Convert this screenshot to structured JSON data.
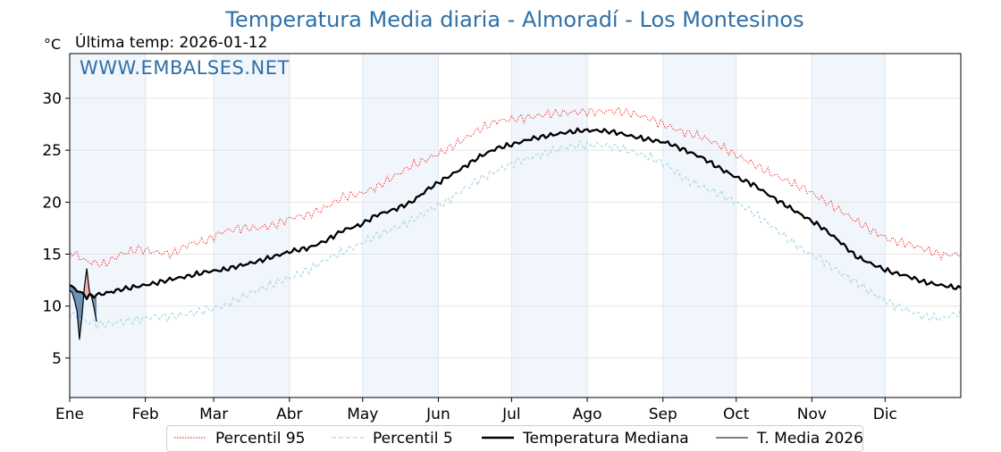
{
  "title": "Temperatura Media diaria - Almoradí - Los Montesinos",
  "unit_label": "°C",
  "subtitle": "Última temp: 2026-01-12",
  "watermark": "WWW.EMBALSES.NET",
  "colors": {
    "p95": "#ff0000",
    "p5": "#add8e6",
    "median": "#000000",
    "current": "#000000",
    "band_shade": "#f0f6fc",
    "fill_above": "#f4a3a3",
    "fill_below": "#4f7ea8",
    "title": "#2f6fa7"
  },
  "legend": [
    {
      "key": "p95",
      "label": "Percentil 95",
      "style": "dotted"
    },
    {
      "key": "p5",
      "label": "Percentil 5",
      "style": "dashed"
    },
    {
      "key": "median",
      "label": "Temperatura Mediana",
      "style": "thick"
    },
    {
      "key": "current",
      "label": "T. Media 2026",
      "style": "thin"
    }
  ],
  "chart_data": {
    "type": "line",
    "title": "Temperatura Media diaria - Almoradí - Los Montesinos",
    "ylabel": "°C",
    "xlabel": "",
    "ylim": [
      1.2,
      34.3
    ],
    "yticks": [
      5,
      10,
      15,
      20,
      25,
      30
    ],
    "x_range_days": [
      1,
      366
    ],
    "months": [
      {
        "label": "Ene",
        "start_day": 1
      },
      {
        "label": "Feb",
        "start_day": 32
      },
      {
        "label": "Mar",
        "start_day": 60
      },
      {
        "label": "Abr",
        "start_day": 91
      },
      {
        "label": "May",
        "start_day": 121
      },
      {
        "label": "Jun",
        "start_day": 152
      },
      {
        "label": "Jul",
        "start_day": 182
      },
      {
        "label": "Ago",
        "start_day": 213
      },
      {
        "label": "Sep",
        "start_day": 244
      },
      {
        "label": "Oct",
        "start_day": 274
      },
      {
        "label": "Nov",
        "start_day": 305
      },
      {
        "label": "Dic",
        "start_day": 335
      }
    ],
    "shaded_month_indices": [
      0,
      2,
      4,
      6,
      8,
      10
    ],
    "grid": true,
    "legend_position": "bottom",
    "series": [
      {
        "key": "p95",
        "name": "Percentil 95",
        "x": [
          1,
          8,
          15,
          22,
          29,
          36,
          43,
          50,
          57,
          64,
          71,
          78,
          85,
          92,
          99,
          106,
          113,
          120,
          127,
          134,
          141,
          148,
          155,
          162,
          169,
          176,
          183,
          190,
          197,
          204,
          211,
          218,
          225,
          232,
          239,
          246,
          253,
          260,
          267,
          274,
          281,
          288,
          295,
          302,
          309,
          316,
          323,
          330,
          337,
          344,
          351,
          358,
          366
        ],
        "values": [
          15.3,
          14.3,
          14.0,
          15.0,
          15.5,
          15.2,
          15.0,
          16.0,
          16.3,
          17.2,
          17.5,
          17.5,
          17.8,
          18.5,
          18.8,
          19.5,
          20.5,
          20.8,
          21.5,
          22.5,
          23.5,
          24.2,
          25.0,
          26.0,
          27.0,
          27.8,
          28.0,
          28.2,
          28.5,
          28.6,
          28.7,
          28.7,
          28.8,
          28.5,
          28.0,
          27.3,
          26.7,
          26.3,
          25.5,
          24.5,
          23.7,
          22.8,
          22.0,
          21.3,
          20.3,
          19.3,
          18.2,
          17.2,
          16.4,
          16.0,
          15.5,
          14.9,
          15.0
        ]
      },
      {
        "key": "p5",
        "name": "Percentil 5",
        "x": [
          1,
          8,
          15,
          22,
          29,
          36,
          43,
          50,
          57,
          64,
          71,
          78,
          85,
          92,
          99,
          106,
          113,
          120,
          127,
          134,
          141,
          148,
          155,
          162,
          169,
          176,
          183,
          190,
          197,
          204,
          211,
          218,
          225,
          232,
          239,
          246,
          253,
          260,
          267,
          274,
          281,
          288,
          295,
          302,
          309,
          316,
          323,
          330,
          337,
          344,
          351,
          358,
          366
        ],
        "values": [
          9.3,
          8.5,
          8.2,
          8.5,
          8.7,
          9.0,
          9.0,
          9.3,
          9.6,
          10.0,
          10.8,
          11.5,
          12.2,
          12.8,
          13.5,
          14.5,
          15.2,
          16.0,
          16.8,
          17.5,
          18.2,
          19.2,
          20.0,
          21.2,
          22.2,
          23.0,
          23.8,
          24.3,
          24.8,
          25.3,
          25.5,
          25.5,
          25.3,
          24.8,
          24.3,
          23.5,
          22.2,
          21.5,
          20.8,
          20.0,
          19.0,
          17.8,
          16.5,
          15.3,
          14.5,
          13.3,
          12.3,
          11.2,
          10.3,
          9.6,
          9.0,
          8.8,
          9.4
        ]
      },
      {
        "key": "median",
        "name": "Temperatura Mediana",
        "x": [
          1,
          8,
          15,
          22,
          29,
          36,
          43,
          50,
          57,
          64,
          71,
          78,
          85,
          92,
          99,
          106,
          113,
          120,
          127,
          134,
          141,
          148,
          155,
          162,
          169,
          176,
          183,
          190,
          197,
          204,
          211,
          218,
          225,
          232,
          239,
          246,
          253,
          260,
          267,
          274,
          281,
          288,
          295,
          302,
          309,
          316,
          323,
          330,
          337,
          344,
          351,
          358,
          366
        ],
        "values": [
          12.0,
          10.9,
          11.2,
          11.6,
          11.9,
          12.2,
          12.6,
          12.9,
          13.3,
          13.5,
          13.9,
          14.3,
          14.8,
          15.3,
          15.6,
          16.3,
          17.3,
          17.8,
          18.8,
          19.3,
          20.0,
          21.3,
          22.3,
          23.3,
          24.4,
          25.2,
          25.6,
          26.1,
          26.4,
          26.7,
          26.9,
          26.9,
          26.7,
          26.3,
          26.0,
          25.7,
          25.0,
          24.3,
          23.3,
          22.4,
          21.7,
          20.6,
          19.6,
          18.6,
          17.6,
          16.3,
          14.8,
          14.0,
          13.3,
          12.9,
          12.3,
          12.0,
          11.7
        ]
      },
      {
        "key": "current",
        "name": "T. Media 2026",
        "x": [
          1,
          2,
          3,
          4,
          5,
          6,
          7,
          8,
          9,
          10,
          11,
          12
        ],
        "values": [
          11.5,
          11.3,
          10.5,
          9.5,
          6.8,
          9.0,
          11.8,
          13.6,
          11.5,
          10.8,
          9.8,
          8.5
        ]
      }
    ]
  }
}
